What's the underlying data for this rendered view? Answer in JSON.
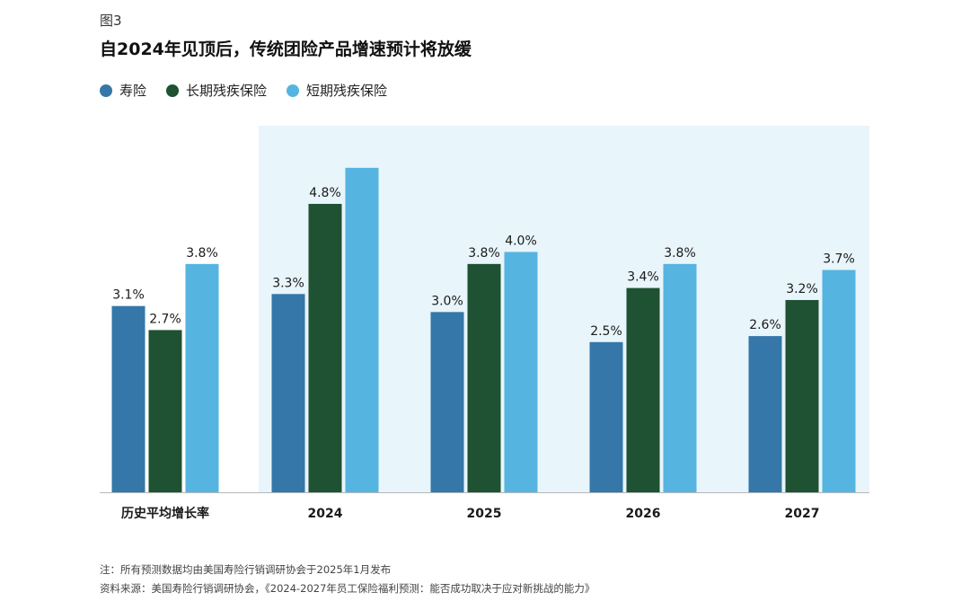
{
  "figure_label": "图3",
  "title": "自2024年见顶后，传统团险产品增速预计将放缓",
  "notes": [
    "注：所有预测数据均由美国寿险行销调研协会于2025年1月发布",
    "资料来源：美国寿险行销调研协会，《2024-2027年员工保险福利预测：能否成功取决于应对新挑战的能力》"
  ],
  "chart_data": {
    "type": "bar",
    "categories": [
      "历史平均增长率",
      "2024",
      "2025",
      "2026",
      "2027"
    ],
    "series": [
      {
        "name": "寿险",
        "values": [
          3.1,
          3.3,
          3.0,
          2.5,
          2.6
        ],
        "labels": [
          "3.1%",
          "3.3%",
          "3.0%",
          "2.5%",
          "2.6%"
        ],
        "color": "#3577a8"
      },
      {
        "name": "长期残疾保险",
        "values": [
          2.7,
          4.8,
          3.8,
          3.4,
          3.2
        ],
        "labels": [
          "2.7%",
          "4.8%",
          "3.8%",
          "3.4%",
          "3.2%"
        ],
        "color": "#1f5133"
      },
      {
        "name": "短期残疾保险",
        "values": [
          3.8,
          5.4,
          4.0,
          3.8,
          3.7
        ],
        "labels": [
          "3.8%",
          "",
          "4.0%",
          "3.8%",
          "3.7%"
        ],
        "color": "#56b4e1"
      }
    ],
    "ylim": [
      0,
      6.1
    ],
    "legend_position": "top-left",
    "highlight_categories": [
      "2024",
      "2025",
      "2026",
      "2027"
    ],
    "highlight_color": "#e8f5fb",
    "grid": false
  }
}
